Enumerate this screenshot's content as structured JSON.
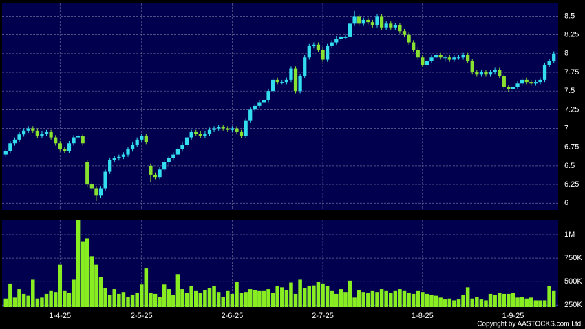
{
  "chart_data": [
    {
      "type": "candlestick",
      "categories": [
        null,
        null,
        null,
        null,
        null,
        null,
        null,
        null,
        null,
        null,
        null,
        null,
        "1-4-25",
        null,
        null,
        null,
        null,
        null,
        null,
        null,
        null,
        null,
        null,
        null,
        null,
        null,
        null,
        null,
        null,
        null,
        "2-5-25",
        null,
        null,
        null,
        null,
        null,
        null,
        null,
        null,
        null,
        null,
        null,
        null,
        null,
        null,
        null,
        null,
        null,
        null,
        null,
        "2-6-25",
        null,
        null,
        null,
        null,
        null,
        null,
        null,
        null,
        null,
        null,
        null,
        null,
        null,
        null,
        null,
        null,
        null,
        null,
        null,
        "2-7-25",
        null,
        null,
        null,
        null,
        null,
        null,
        null,
        null,
        null,
        null,
        null,
        null,
        null,
        null,
        null,
        null,
        null,
        null,
        null,
        null,
        null,
        "1-8-25",
        null,
        null,
        null,
        null,
        null,
        null,
        null,
        null,
        null,
        null,
        null,
        null,
        null,
        null,
        null,
        null,
        null,
        null,
        null,
        "1-9-25",
        null,
        null,
        null,
        null,
        null,
        null,
        null,
        null,
        null
      ],
      "open": [
        6.65,
        6.7,
        6.8,
        6.85,
        6.92,
        6.97,
        7.0,
        6.97,
        6.9,
        6.93,
        6.95,
        6.88,
        6.8,
        6.72,
        6.7,
        6.8,
        6.88,
        6.9,
        6.55,
        6.25,
        6.2,
        6.1,
        6.2,
        6.42,
        6.58,
        6.6,
        6.62,
        6.65,
        6.72,
        6.78,
        6.85,
        6.9,
        6.5,
        6.38,
        6.35,
        6.45,
        6.55,
        6.6,
        6.65,
        6.72,
        6.78,
        6.88,
        6.95,
        6.93,
        6.9,
        6.93,
        6.98,
        7.0,
        7.02,
        7.0,
        6.98,
        7.0,
        6.95,
        6.9,
        7.1,
        7.25,
        7.3,
        7.35,
        7.38,
        7.5,
        7.65,
        7.62,
        7.62,
        7.65,
        7.8,
        7.5,
        7.7,
        7.95,
        8.1,
        8.12,
        8.05,
        7.92,
        8.1,
        8.15,
        8.2,
        8.22,
        8.22,
        8.4,
        8.5,
        8.4,
        8.45,
        8.42,
        8.38,
        8.5,
        8.35,
        8.4,
        8.35,
        8.38,
        8.3,
        8.25,
        8.15,
        8.05,
        7.95,
        7.85,
        7.9,
        7.95,
        7.98,
        7.95,
        7.95,
        7.92,
        7.95,
        7.95,
        7.98,
        7.9,
        7.75,
        7.72,
        7.75,
        7.72,
        7.75,
        7.78,
        7.7,
        7.55,
        7.52,
        7.55,
        7.6,
        7.65,
        7.62,
        7.6,
        7.62,
        7.65,
        7.85,
        7.9
      ],
      "high": [
        6.73,
        6.83,
        6.88,
        6.95,
        7.0,
        7.03,
        7.03,
        7.0,
        6.96,
        6.98,
        6.98,
        6.91,
        6.83,
        6.75,
        6.83,
        6.91,
        6.93,
        6.93,
        6.58,
        6.28,
        6.23,
        6.23,
        6.45,
        6.61,
        6.63,
        6.65,
        6.68,
        6.75,
        6.81,
        6.88,
        6.93,
        6.93,
        6.53,
        6.41,
        6.48,
        6.58,
        6.63,
        6.68,
        6.75,
        6.81,
        6.91,
        6.98,
        6.98,
        6.96,
        6.96,
        7.01,
        7.03,
        7.05,
        7.05,
        7.03,
        7.03,
        7.03,
        6.98,
        7.13,
        7.28,
        7.33,
        7.38,
        7.41,
        7.53,
        7.68,
        7.68,
        7.65,
        7.68,
        7.83,
        7.83,
        7.73,
        7.98,
        8.13,
        8.15,
        8.15,
        8.08,
        8.13,
        8.18,
        8.23,
        8.25,
        8.25,
        8.43,
        8.57,
        8.53,
        8.48,
        8.48,
        8.45,
        8.53,
        8.53,
        8.43,
        8.43,
        8.41,
        8.41,
        8.33,
        8.28,
        8.18,
        8.08,
        7.98,
        7.93,
        7.98,
        8.01,
        8.01,
        7.98,
        7.98,
        7.98,
        7.98,
        8.01,
        8.01,
        7.93,
        7.78,
        7.78,
        7.78,
        7.78,
        7.81,
        7.81,
        7.73,
        7.58,
        7.58,
        7.63,
        7.68,
        7.68,
        7.65,
        7.65,
        7.68,
        7.88,
        7.93,
        8.03
      ],
      "low": [
        6.62,
        6.67,
        6.77,
        6.82,
        6.89,
        6.94,
        6.94,
        6.87,
        6.87,
        6.9,
        6.85,
        6.77,
        6.69,
        6.67,
        6.67,
        6.77,
        6.85,
        6.77,
        6.22,
        6.17,
        6.03,
        6.07,
        6.17,
        6.39,
        6.55,
        6.57,
        6.59,
        6.62,
        6.69,
        6.75,
        6.82,
        6.79,
        6.28,
        6.32,
        6.32,
        6.42,
        6.52,
        6.57,
        6.62,
        6.69,
        6.75,
        6.85,
        6.9,
        6.87,
        6.87,
        6.9,
        6.95,
        6.97,
        6.97,
        6.95,
        6.95,
        6.92,
        6.87,
        6.87,
        7.07,
        7.22,
        7.27,
        7.32,
        7.35,
        7.47,
        7.59,
        7.59,
        7.59,
        7.62,
        7.47,
        7.47,
        7.67,
        7.92,
        8.07,
        8.02,
        7.89,
        7.89,
        8.07,
        8.12,
        8.17,
        8.19,
        8.19,
        8.37,
        8.37,
        8.37,
        8.39,
        8.35,
        8.35,
        8.32,
        8.32,
        8.32,
        8.32,
        8.27,
        8.22,
        8.12,
        8.02,
        7.92,
        7.82,
        7.82,
        7.87,
        7.92,
        7.92,
        7.89,
        7.89,
        7.89,
        7.92,
        7.92,
        7.87,
        7.72,
        7.69,
        7.69,
        7.69,
        7.69,
        7.72,
        7.67,
        7.52,
        7.49,
        7.49,
        7.52,
        7.57,
        7.59,
        7.57,
        7.57,
        7.59,
        7.62,
        7.82,
        7.87
      ],
      "close": [
        6.7,
        6.8,
        6.85,
        6.92,
        6.97,
        7.0,
        6.97,
        6.9,
        6.93,
        6.95,
        6.88,
        6.8,
        6.72,
        6.7,
        6.8,
        6.88,
        6.9,
        6.8,
        6.25,
        6.2,
        6.1,
        6.2,
        6.42,
        6.58,
        6.6,
        6.62,
        6.65,
        6.72,
        6.78,
        6.85,
        6.9,
        6.82,
        6.38,
        6.35,
        6.45,
        6.55,
        6.6,
        6.65,
        6.72,
        6.78,
        6.88,
        6.95,
        6.93,
        6.9,
        6.93,
        6.98,
        7.0,
        7.02,
        7.0,
        6.98,
        7.0,
        6.95,
        6.9,
        7.1,
        7.25,
        7.3,
        7.35,
        7.38,
        7.5,
        7.65,
        7.62,
        7.62,
        7.65,
        7.8,
        7.5,
        7.7,
        7.95,
        8.1,
        8.12,
        8.05,
        7.92,
        8.1,
        8.15,
        8.2,
        8.22,
        8.22,
        8.4,
        8.5,
        8.4,
        8.45,
        8.42,
        8.38,
        8.5,
        8.35,
        8.4,
        8.35,
        8.38,
        8.3,
        8.25,
        8.15,
        8.05,
        7.95,
        7.85,
        7.9,
        7.95,
        7.98,
        7.95,
        7.95,
        7.92,
        7.95,
        7.95,
        7.98,
        7.9,
        7.75,
        7.72,
        7.75,
        7.72,
        7.75,
        7.78,
        7.7,
        7.55,
        7.52,
        7.55,
        7.6,
        7.65,
        7.62,
        7.6,
        7.62,
        7.65,
        7.85,
        7.9,
        8.0
      ],
      "up_color": "#33ddee",
      "down_color": "#88e030",
      "ylim": [
        5.91,
        8.67
      ],
      "yticks": [
        6,
        6.25,
        6.5,
        6.75,
        7,
        7.25,
        7.5,
        7.75,
        8,
        8.25,
        8.5
      ],
      "grid": true
    },
    {
      "type": "bar",
      "values": [
        320000,
        480000,
        330000,
        420000,
        370000,
        350000,
        520000,
        320000,
        330000,
        370000,
        400000,
        390000,
        680000,
        400000,
        380000,
        520000,
        1180000,
        930000,
        960000,
        770000,
        680000,
        550000,
        430000,
        360000,
        420000,
        370000,
        390000,
        340000,
        360000,
        380000,
        470000,
        640000,
        380000,
        370000,
        340000,
        470000,
        420000,
        360000,
        580000,
        420000,
        380000,
        450000,
        400000,
        380000,
        410000,
        430000,
        450000,
        390000,
        340000,
        400000,
        370000,
        500000,
        380000,
        390000,
        420000,
        410000,
        400000,
        400000,
        420000,
        380000,
        450000,
        440000,
        410000,
        490000,
        370000,
        520000,
        430000,
        450000,
        460000,
        500000,
        480000,
        450000,
        400000,
        370000,
        420000,
        390000,
        510000,
        330000,
        410000,
        390000,
        380000,
        400000,
        390000,
        420000,
        400000,
        380000,
        400000,
        420000,
        400000,
        380000,
        370000,
        400000,
        390000,
        370000,
        360000,
        350000,
        330000,
        310000,
        320000,
        300000,
        310000,
        360000,
        440000,
        320000,
        340000,
        310000,
        300000,
        370000,
        360000,
        380000,
        370000,
        370000,
        380000,
        330000,
        340000,
        320000,
        330000,
        300000,
        300000,
        300000,
        450000,
        400000
      ],
      "color": "#88ee22",
      "ylim": [
        230000,
        1154000
      ],
      "yticks": [
        {
          "value": 250000,
          "label": "250K"
        },
        {
          "value": 500000,
          "label": "500K"
        },
        {
          "value": 750000,
          "label": "750K"
        },
        {
          "value": 1000000,
          "label": "1M"
        }
      ],
      "grid": true
    }
  ],
  "footer": "Copyright by AASTOCKS.com Ltd."
}
